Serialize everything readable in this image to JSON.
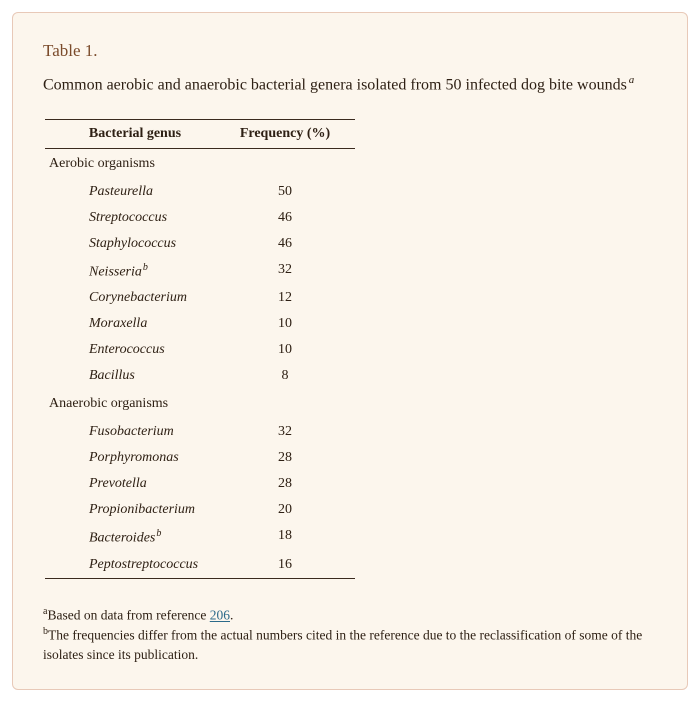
{
  "label": "Table 1.",
  "caption": "Common aerobic and anaerobic bacterial genera isolated from 50 infected dog bite wounds",
  "caption_sup": "a",
  "columns": {
    "genus": "Bacterial genus",
    "freq": "Frequency (%)"
  },
  "sections": [
    {
      "title": "Aerobic organisms",
      "rows": [
        {
          "genus": "Pasteurella",
          "freq": "50",
          "sup": ""
        },
        {
          "genus": "Streptococcus",
          "freq": "46",
          "sup": ""
        },
        {
          "genus": "Staphylococcus",
          "freq": "46",
          "sup": ""
        },
        {
          "genus": "Neisseria",
          "freq": "32",
          "sup": "b"
        },
        {
          "genus": "Corynebacterium",
          "freq": "12",
          "sup": ""
        },
        {
          "genus": "Moraxella",
          "freq": "10",
          "sup": ""
        },
        {
          "genus": "Enterococcus",
          "freq": "10",
          "sup": ""
        },
        {
          "genus": "Bacillus",
          "freq": "8",
          "sup": ""
        }
      ]
    },
    {
      "title": "Anaerobic organisms",
      "rows": [
        {
          "genus": "Fusobacterium",
          "freq": "32",
          "sup": ""
        },
        {
          "genus": "Porphyromonas",
          "freq": "28",
          "sup": ""
        },
        {
          "genus": "Prevotella",
          "freq": "28",
          "sup": ""
        },
        {
          "genus": "Propionibacterium",
          "freq": "20",
          "sup": ""
        },
        {
          "genus": "Bacteroides",
          "freq": "18",
          "sup": "b"
        },
        {
          "genus": "Peptostreptococcus",
          "freq": "16",
          "sup": ""
        }
      ]
    }
  ],
  "footnotes": {
    "a_pre": "Based on data from reference ",
    "a_ref": "206",
    "a_post": ".",
    "b": "The frequencies differ from the actual numbers cited in the reference due to the reclassification of some of the isolates since its publication."
  },
  "style": {
    "panel_bg": "#fcf6ed",
    "panel_border": "#e8c9b8",
    "label_color": "#7a4a2a",
    "text_color": "#2e2014",
    "rule_color": "#3a2a1e",
    "link_color": "#2b6a8a"
  }
}
